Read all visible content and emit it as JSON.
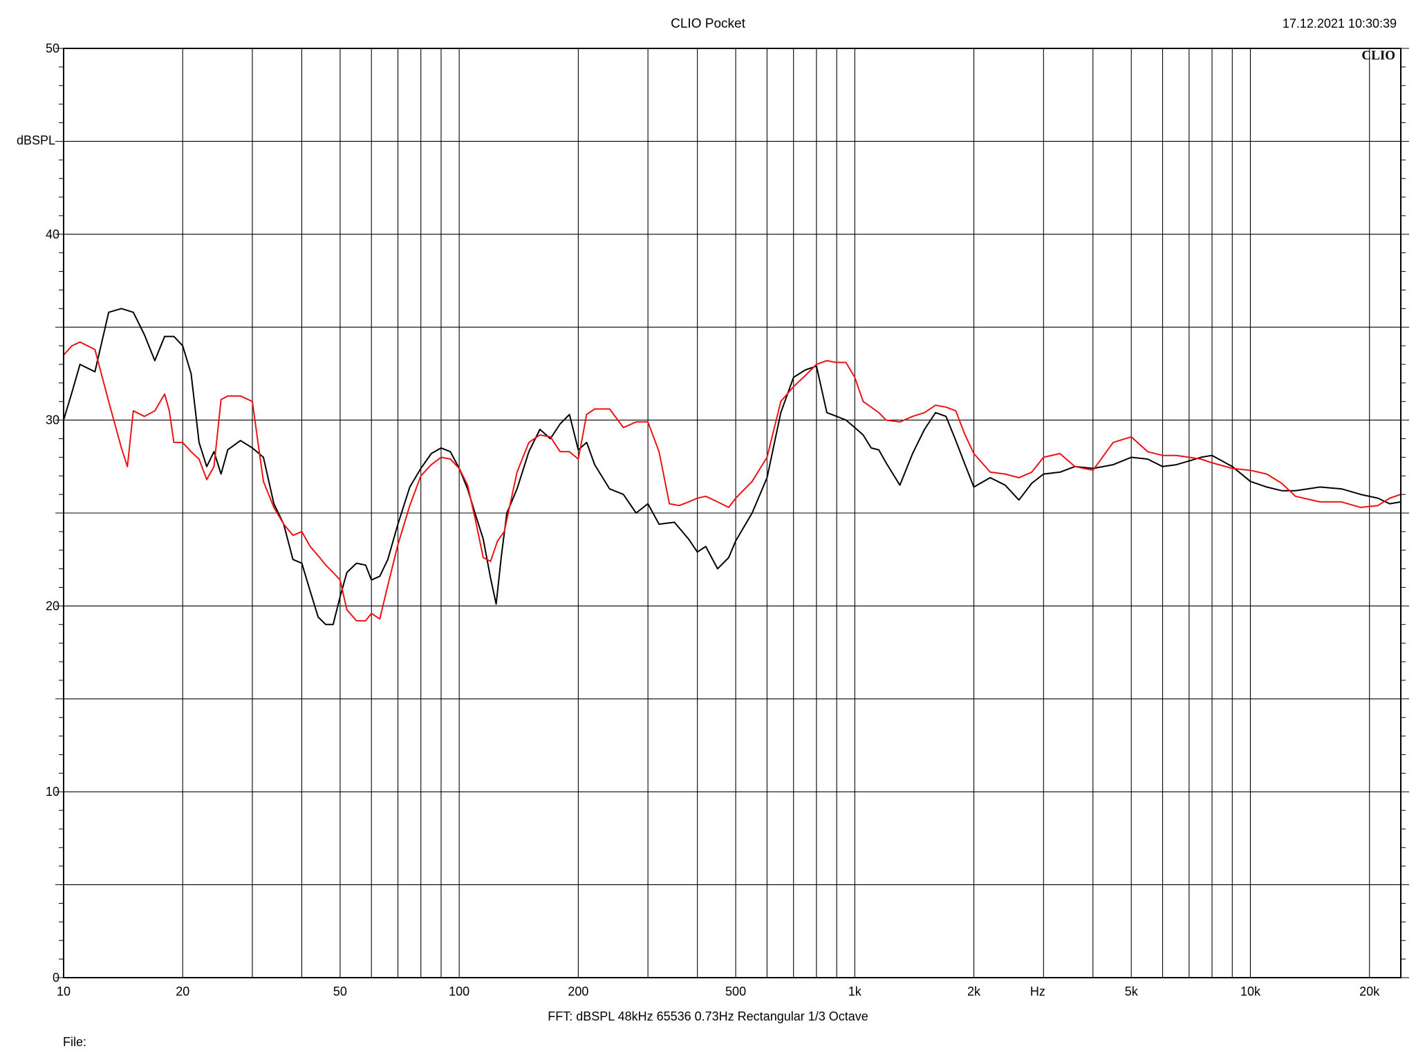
{
  "header": {
    "app_title": "CLIO Pocket",
    "timestamp": "17.12.2021 10:30:39",
    "logo": "CLIO"
  },
  "footer": {
    "info": "FFT:  dBSPL  48kHz   65536  0.73Hz  Rectangular  1/3 Octave",
    "file_label": "File:"
  },
  "colors": {
    "series_black": "#000000",
    "series_red": "#ee1111",
    "grid": "#000000"
  },
  "chart_data": {
    "type": "line",
    "title": "CLIO Pocket",
    "xlabel": "Hz",
    "ylabel": "dBSPL",
    "x_scale": "log",
    "xlim": [
      10,
      24000
    ],
    "ylim": [
      0,
      50
    ],
    "grid": true,
    "legend": "none",
    "y_ticks": [
      0,
      10,
      20,
      30,
      40,
      50
    ],
    "y_tick_labels": [
      "0",
      "10",
      "20",
      "30",
      "40",
      "50"
    ],
    "x_ticks": [
      10,
      20,
      50,
      100,
      200,
      500,
      1000,
      2000,
      5000,
      10000,
      20000
    ],
    "x_tick_labels": [
      "10",
      "20",
      "50",
      "100",
      "200",
      "500",
      "1k",
      "2k",
      "5k",
      "10k",
      "20k"
    ],
    "series": [
      {
        "color": "#000000",
        "x": [
          10,
          10.5,
          11,
          12,
          13,
          14,
          15,
          16,
          17,
          18,
          19,
          20,
          21,
          22,
          23,
          24,
          25,
          26,
          28,
          30,
          32,
          34,
          36,
          38,
          40,
          42,
          44,
          46,
          48,
          50,
          52,
          55,
          58,
          60,
          63,
          66,
          70,
          75,
          80,
          85,
          90,
          95,
          100,
          105,
          110,
          115,
          120,
          124,
          128,
          132,
          140,
          150,
          160,
          170,
          180,
          190,
          200,
          210,
          220,
          240,
          260,
          280,
          300,
          320,
          350,
          380,
          400,
          420,
          450,
          480,
          500,
          550,
          600,
          650,
          700,
          750,
          800,
          850,
          900,
          950,
          1000,
          1050,
          1100,
          1150,
          1200,
          1300,
          1400,
          1500,
          1600,
          1700,
          1800,
          1900,
          2000,
          2200,
          2400,
          2600,
          2800,
          3000,
          3300,
          3600,
          4000,
          4500,
          5000,
          5500,
          6000,
          6500,
          7000,
          7500,
          8000,
          9000,
          10000,
          11000,
          12000,
          13000,
          15000,
          17000,
          19000,
          21000,
          22500,
          24000
        ],
        "y": [
          30.0,
          31.5,
          33.0,
          32.6,
          35.8,
          36.0,
          35.8,
          34.6,
          33.2,
          34.5,
          34.5,
          34.0,
          32.5,
          28.8,
          27.5,
          28.3,
          27.1,
          28.4,
          28.9,
          28.5,
          28.0,
          25.5,
          24.4,
          22.5,
          22.3,
          20.8,
          19.4,
          19.0,
          19.0,
          20.5,
          21.8,
          22.3,
          22.2,
          21.4,
          21.6,
          22.5,
          24.4,
          26.4,
          27.4,
          28.2,
          28.5,
          28.3,
          27.4,
          26.3,
          24.9,
          23.6,
          21.5,
          20.1,
          22.8,
          25.0,
          26.3,
          28.3,
          29.5,
          29.0,
          29.8,
          30.3,
          28.4,
          28.8,
          27.6,
          26.3,
          26.0,
          25.0,
          25.5,
          24.4,
          24.5,
          23.6,
          22.9,
          23.2,
          22.0,
          22.6,
          23.5,
          25.0,
          26.9,
          30.4,
          32.3,
          32.7,
          32.9,
          30.4,
          30.2,
          30.0,
          29.6,
          29.2,
          28.5,
          28.4,
          27.7,
          26.5,
          28.2,
          29.5,
          30.4,
          30.2,
          28.9,
          27.6,
          26.4,
          26.9,
          26.5,
          25.7,
          26.6,
          27.1,
          27.2,
          27.5,
          27.4,
          27.6,
          28.0,
          27.9,
          27.5,
          27.6,
          27.8,
          28.0,
          28.1,
          27.5,
          26.7,
          26.4,
          26.2,
          26.2,
          26.4,
          26.3,
          26.0,
          25.8,
          25.5,
          25.6
        ]
      },
      {
        "color": "#ee1111",
        "x": [
          10,
          10.5,
          11,
          12,
          13,
          14,
          14.5,
          15,
          16,
          17,
          18,
          18.5,
          19,
          20,
          21,
          22,
          23,
          24,
          25,
          26,
          28,
          30,
          31,
          32,
          34,
          36,
          38,
          40,
          42,
          44,
          46,
          48,
          50,
          52,
          55,
          58,
          60,
          63,
          66,
          70,
          75,
          80,
          85,
          90,
          95,
          100,
          105,
          110,
          115,
          120,
          125,
          130,
          140,
          150,
          160,
          170,
          180,
          190,
          200,
          210,
          220,
          240,
          260,
          280,
          300,
          320,
          340,
          360,
          380,
          400,
          420,
          450,
          480,
          500,
          550,
          600,
          650,
          700,
          750,
          800,
          850,
          900,
          950,
          1000,
          1050,
          1100,
          1150,
          1200,
          1300,
          1400,
          1500,
          1600,
          1700,
          1800,
          1900,
          2000,
          2200,
          2400,
          2600,
          2800,
          3000,
          3300,
          3600,
          4000,
          4500,
          5000,
          5500,
          6000,
          6500,
          7000,
          7500,
          8000,
          9000,
          10000,
          11000,
          12000,
          13000,
          15000,
          17000,
          19000,
          21000,
          22500,
          24000
        ],
        "y": [
          33.5,
          34.0,
          34.2,
          33.8,
          31.0,
          28.5,
          27.5,
          30.5,
          30.2,
          30.5,
          31.4,
          30.5,
          28.8,
          28.8,
          28.3,
          27.9,
          26.8,
          27.5,
          31.1,
          31.3,
          31.3,
          31.0,
          28.8,
          26.7,
          25.3,
          24.4,
          23.8,
          24.0,
          23.2,
          22.7,
          22.2,
          21.8,
          21.4,
          19.8,
          19.2,
          19.2,
          19.6,
          19.3,
          21.1,
          23.3,
          25.4,
          27.0,
          27.6,
          28.0,
          27.9,
          27.4,
          26.5,
          24.6,
          22.6,
          22.4,
          23.5,
          24.0,
          27.2,
          28.8,
          29.2,
          29.1,
          28.3,
          28.3,
          27.9,
          30.3,
          30.6,
          30.6,
          29.6,
          29.9,
          29.9,
          28.3,
          25.5,
          25.4,
          25.6,
          25.8,
          25.9,
          25.6,
          25.3,
          25.8,
          26.7,
          28.0,
          31.0,
          31.8,
          32.4,
          33.0,
          33.2,
          33.1,
          33.1,
          32.3,
          31.0,
          30.7,
          30.4,
          30.0,
          29.9,
          30.2,
          30.4,
          30.8,
          30.7,
          30.5,
          29.2,
          28.2,
          27.2,
          27.1,
          26.9,
          27.2,
          28.0,
          28.2,
          27.5,
          27.3,
          28.8,
          29.1,
          28.3,
          28.1,
          28.1,
          28.0,
          27.9,
          27.7,
          27.4,
          27.3,
          27.1,
          26.6,
          25.9,
          25.6,
          25.6,
          25.3,
          25.4,
          25.8,
          26.0
        ]
      }
    ]
  }
}
